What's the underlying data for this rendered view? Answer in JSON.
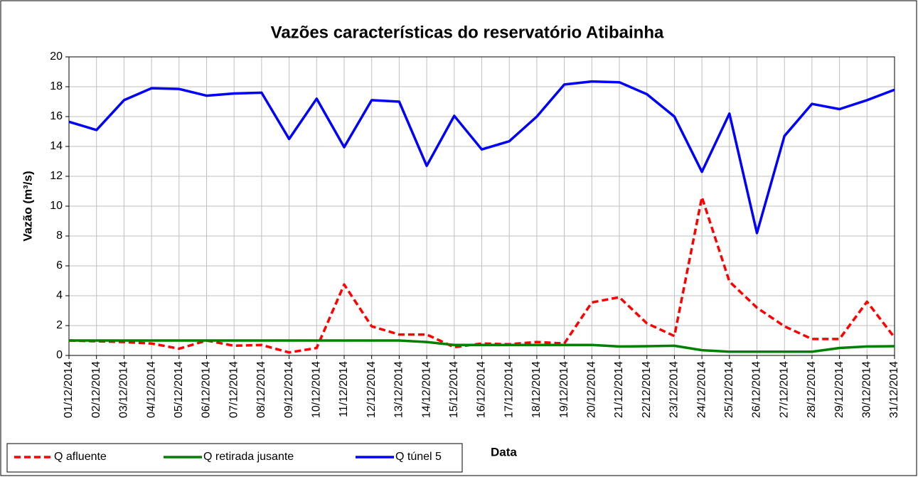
{
  "chart_data": {
    "type": "line",
    "title": "Vazões características do reservatório Atibainha",
    "y_label": "Vazão (m³/s)",
    "x_label": "Data",
    "categories": [
      "01/12/2014",
      "02/12/2014",
      "03/12/2014",
      "04/12/2014",
      "05/12/2014",
      "06/12/2014",
      "07/12/2014",
      "08/12/2014",
      "09/12/2014",
      "10/12/2014",
      "11/12/2014",
      "12/12/2014",
      "13/12/2014",
      "14/12/2014",
      "15/12/2014",
      "16/12/2014",
      "17/12/2014",
      "18/12/2014",
      "19/12/2014",
      "20/12/2014",
      "21/12/2014",
      "22/12/2014",
      "23/12/2014",
      "24/12/2014",
      "25/12/2014",
      "26/12/2014",
      "27/12/2014",
      "28/12/2014",
      "29/12/2014",
      "30/12/2014",
      "31/12/2014"
    ],
    "series": [
      {
        "name": "Q afluente",
        "color": "#ff0000",
        "dashed": true,
        "values": [
          1.0,
          0.95,
          0.9,
          0.8,
          0.45,
          1.0,
          0.65,
          0.7,
          0.2,
          0.5,
          4.75,
          1.95,
          1.4,
          1.4,
          0.55,
          0.8,
          0.75,
          0.9,
          0.8,
          3.55,
          3.9,
          2.15,
          1.3,
          10.6,
          4.95,
          3.2,
          1.95,
          1.1,
          1.1,
          3.6,
          1.2
        ]
      },
      {
        "name": "Q retirada jusante",
        "color": "#008000",
        "dashed": false,
        "values": [
          1.0,
          1.0,
          1.0,
          1.0,
          1.0,
          1.0,
          1.0,
          1.0,
          1.0,
          1.0,
          1.0,
          1.0,
          1.0,
          0.9,
          0.7,
          0.7,
          0.7,
          0.7,
          0.7,
          0.7,
          0.6,
          0.62,
          0.65,
          0.35,
          0.25,
          0.25,
          0.25,
          0.25,
          0.5,
          0.6,
          0.62
        ]
      },
      {
        "name": "Q túnel 5",
        "color": "#0000ff",
        "dashed": false,
        "values": [
          15.65,
          15.1,
          17.1,
          17.9,
          17.85,
          17.4,
          17.55,
          17.6,
          14.5,
          17.2,
          13.95,
          17.1,
          17.0,
          12.7,
          16.05,
          13.8,
          14.35,
          16.0,
          18.15,
          18.35,
          18.3,
          17.5,
          16.0,
          12.3,
          16.2,
          8.2,
          14.7,
          16.85,
          16.5,
          17.1,
          17.8
        ]
      }
    ],
    "ylim": [
      0,
      20
    ],
    "yticks": [
      0,
      2,
      4,
      6,
      8,
      10,
      12,
      14,
      16,
      18,
      20
    ],
    "grid": true,
    "legend": "bottom-left"
  }
}
